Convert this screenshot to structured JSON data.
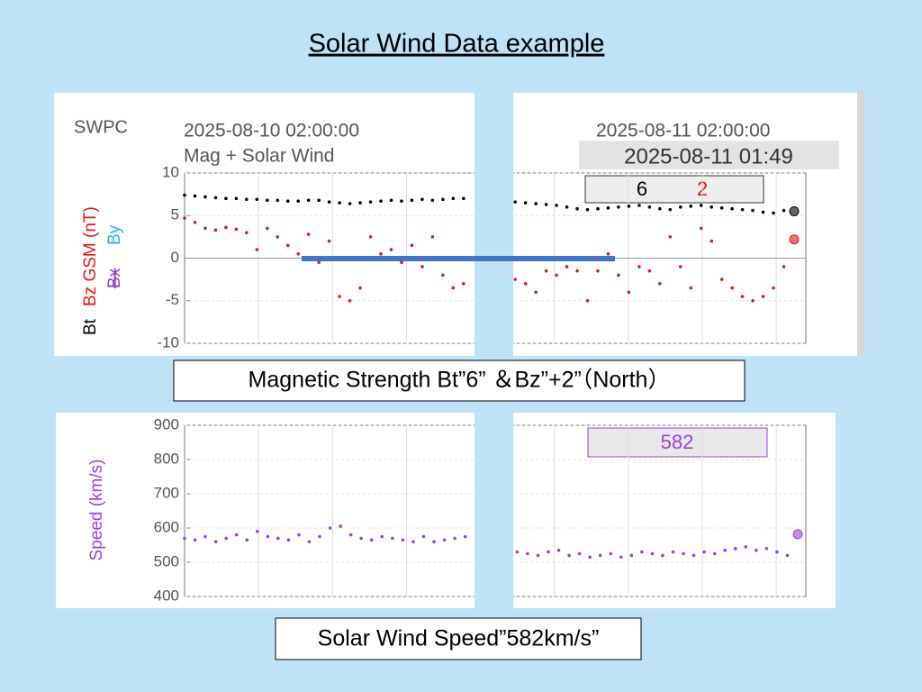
{
  "title": "Solar Wind Data example",
  "captions": [
    "Magnetic Strength Bt”6” ＆Bz”+2”（North）",
    "Solar Wind Speed”582km/s”"
  ],
  "chart_data": [
    {
      "type": "dot",
      "source": "SWPC",
      "start_label": "2025-08-10 02:00:00",
      "end_label": "2025-08-11 02:00:00",
      "subtitle": "Mag + Solar Wind",
      "latest_time": "2025-08-11 01:49",
      "y_label": "Bz GSM (nT)",
      "extra_labels": [
        {
          "text": "Bx",
          "color": "#8a3fd0"
        },
        {
          "text": "By",
          "color": "#22b5e8"
        }
      ],
      "ylim": [
        -10,
        10
      ],
      "yticks": [
        -10,
        -5,
        0,
        5,
        10
      ],
      "grid": true,
      "series": [
        {
          "name": "Bt",
          "color": "#000000",
          "readout": "6",
          "values": [
            7.4,
            7.3,
            7.2,
            7.1,
            7.0,
            7.0,
            6.9,
            6.9,
            6.8,
            6.8,
            6.7,
            6.7,
            6.8,
            6.8,
            6.6,
            6.5,
            6.4,
            6.5,
            6.6,
            6.7,
            6.8,
            6.7,
            6.8,
            6.9,
            6.8,
            6.9,
            7.0,
            7.0,
            null,
            null,
            null,
            null,
            6.6,
            6.5,
            6.4,
            6.3,
            6.2,
            6.0,
            5.8,
            5.7,
            5.8,
            5.9,
            6.0,
            6.1,
            6.2,
            6.0,
            5.8,
            5.7,
            6.0,
            6.1,
            6.2,
            6.0,
            5.9,
            5.8,
            5.7,
            5.6,
            5.4,
            5.3,
            5.6,
            5.5
          ]
        },
        {
          "name": "Bz",
          "color": "#e8141b",
          "readout": "2",
          "values": [
            4.7,
            4.2,
            3.5,
            3.3,
            3.6,
            3.4,
            3.0,
            1.0,
            3.5,
            2.5,
            1.5,
            0.5,
            2.8,
            -0.5,
            2.0,
            -4.5,
            -5.0,
            -3.5,
            2.5,
            0.5,
            1.0,
            -0.5,
            1.5,
            -1.0,
            2.5,
            -2.0,
            -3.5,
            -3.0,
            null,
            null,
            null,
            null,
            -2.5,
            -3.0,
            -4.0,
            -1.5,
            -2.0,
            -1.0,
            -1.5,
            -5.0,
            -1.5,
            0.5,
            -2.0,
            -4.0,
            -1.0,
            -1.5,
            -3.0,
            2.5,
            -1.0,
            -3.5,
            3.5,
            2.0,
            -2.5,
            -3.5,
            -4.5,
            -5.0,
            -4.5,
            -3.5,
            -1.0,
            2.2
          ]
        }
      ]
    },
    {
      "type": "dot",
      "y_label": "Speed (km/s)",
      "ylim": [
        400,
        900
      ],
      "yticks": [
        400,
        500,
        600,
        700,
        800,
        900
      ],
      "grid": true,
      "series": [
        {
          "color": "#9b3fe0",
          "readout": "582",
          "values": [
            570,
            565,
            575,
            560,
            570,
            580,
            565,
            590,
            575,
            570,
            565,
            580,
            560,
            575,
            600,
            605,
            580,
            570,
            565,
            575,
            570,
            565,
            560,
            575,
            560,
            565,
            570,
            575,
            null,
            null,
            null,
            null,
            530,
            525,
            520,
            530,
            535,
            520,
            525,
            515,
            520,
            525,
            515,
            520,
            530,
            525,
            520,
            530,
            525,
            520,
            530,
            525,
            535,
            540,
            545,
            535,
            540,
            530,
            520,
            582
          ]
        }
      ]
    }
  ]
}
